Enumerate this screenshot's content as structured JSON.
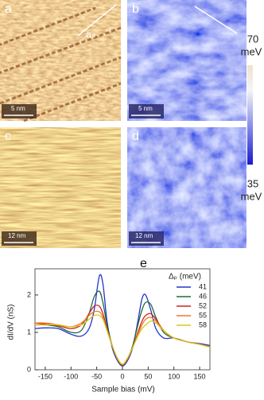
{
  "panels": [
    {
      "label": "a",
      "scale_bar": "5 nm",
      "annotation": "aₛ"
    },
    {
      "label": "b",
      "scale_bar": "5 nm"
    },
    {
      "label": "c",
      "scale_bar": "12 nm"
    },
    {
      "label": "d",
      "scale_bar": "12 nm"
    }
  ],
  "colorbar": {
    "max": 70,
    "min": 35,
    "unit": "meV"
  },
  "chart_data": {
    "type": "line",
    "panel_label": "e",
    "x_label": "Sample bias  (mV)",
    "y_label": "dI/dV  (nS)",
    "legend_title": "Δₚ (meV)",
    "x": [
      -170,
      -150,
      -125,
      -100,
      -80,
      -65,
      -55,
      -45,
      -38,
      -30,
      -20,
      -10,
      0,
      10,
      20,
      30,
      38,
      45,
      55,
      65,
      80,
      100,
      125,
      150,
      170
    ],
    "series": [
      {
        "name": "41",
        "color": "#2233cc",
        "values": [
          1.1,
          1.12,
          1.1,
          0.95,
          0.9,
          1.1,
          1.6,
          2.5,
          2.3,
          1.3,
          0.6,
          0.25,
          0.1,
          0.25,
          0.6,
          1.3,
          1.9,
          2.0,
          1.6,
          1.1,
          0.85,
          0.85,
          0.75,
          0.7,
          0.65
        ]
      },
      {
        "name": "46",
        "color": "#1f6b3a",
        "values": [
          1.2,
          1.2,
          1.15,
          1.0,
          1.05,
          1.5,
          1.95,
          2.1,
          1.8,
          1.2,
          0.65,
          0.3,
          0.12,
          0.3,
          0.65,
          1.2,
          1.6,
          1.8,
          1.75,
          1.4,
          1.0,
          0.85,
          0.75,
          0.68,
          0.62
        ]
      },
      {
        "name": "52",
        "color": "#d02020",
        "values": [
          1.25,
          1.22,
          1.18,
          1.1,
          1.2,
          1.5,
          1.7,
          1.7,
          1.5,
          1.1,
          0.65,
          0.3,
          0.13,
          0.3,
          0.6,
          1.0,
          1.3,
          1.45,
          1.5,
          1.35,
          1.05,
          0.85,
          0.75,
          0.68,
          0.62
        ]
      },
      {
        "name": "55",
        "color": "#f07820",
        "values": [
          1.25,
          1.25,
          1.2,
          1.15,
          1.25,
          1.45,
          1.55,
          1.55,
          1.4,
          1.05,
          0.65,
          0.3,
          0.14,
          0.3,
          0.6,
          0.95,
          1.2,
          1.35,
          1.4,
          1.3,
          1.05,
          0.85,
          0.75,
          0.68,
          0.62
        ]
      },
      {
        "name": "58",
        "color": "#d8c818",
        "values": [
          1.2,
          1.2,
          1.2,
          1.15,
          1.2,
          1.35,
          1.45,
          1.45,
          1.35,
          1.05,
          0.65,
          0.32,
          0.15,
          0.32,
          0.6,
          0.9,
          1.1,
          1.2,
          1.3,
          1.25,
          1.05,
          0.85,
          0.75,
          0.68,
          0.6
        ]
      }
    ],
    "xlim": [
      -170,
      170
    ],
    "ylim": [
      0,
      2.7
    ],
    "xticks": [
      -150,
      -100,
      -50,
      0,
      50,
      100,
      150
    ],
    "yticks": [
      0,
      1,
      2
    ]
  }
}
